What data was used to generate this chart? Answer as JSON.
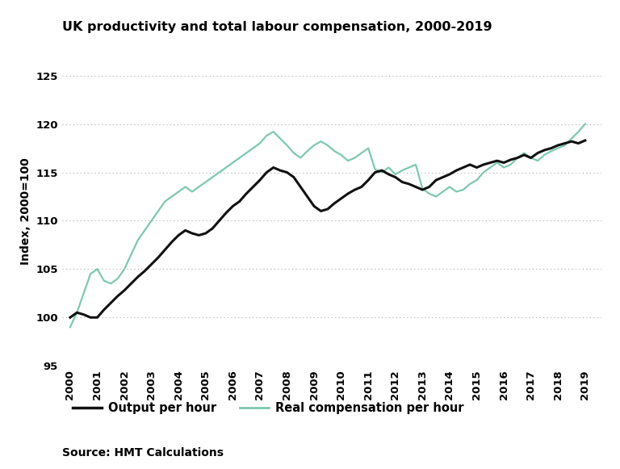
{
  "title": "UK productivity and total labour compensation, 2000-2019",
  "ylabel": "Index, 2000=100",
  "source": "Source: HMT Calculations",
  "ylim": [
    95,
    127
  ],
  "yticks": [
    95,
    100,
    105,
    110,
    115,
    120,
    125
  ],
  "background_color": "#ffffff",
  "output_per_hour_color": "#111111",
  "real_comp_color": "#7dc8b0",
  "output_per_hour_label": "Output per hour",
  "real_comp_label": "Real compensation per hour",
  "output_per_hour_x": [
    2000.0,
    2000.25,
    2000.5,
    2000.75,
    2001.0,
    2001.25,
    2001.5,
    2001.75,
    2002.0,
    2002.25,
    2002.5,
    2002.75,
    2003.0,
    2003.25,
    2003.5,
    2003.75,
    2004.0,
    2004.25,
    2004.5,
    2004.75,
    2005.0,
    2005.25,
    2005.5,
    2005.75,
    2006.0,
    2006.25,
    2006.5,
    2006.75,
    2007.0,
    2007.25,
    2007.5,
    2007.75,
    2008.0,
    2008.25,
    2008.5,
    2008.75,
    2009.0,
    2009.25,
    2009.5,
    2009.75,
    2010.0,
    2010.25,
    2010.5,
    2010.75,
    2011.0,
    2011.25,
    2011.5,
    2011.75,
    2012.0,
    2012.25,
    2012.5,
    2012.75,
    2013.0,
    2013.25,
    2013.5,
    2013.75,
    2014.0,
    2014.25,
    2014.5,
    2014.75,
    2015.0,
    2015.25,
    2015.5,
    2015.75,
    2016.0,
    2016.25,
    2016.5,
    2016.75,
    2017.0,
    2017.25,
    2017.5,
    2017.75,
    2018.0,
    2018.25,
    2018.5,
    2018.75,
    2019.0
  ],
  "output_per_hour_y": [
    100.0,
    100.5,
    100.3,
    100.0,
    100.0,
    100.8,
    101.5,
    102.2,
    102.8,
    103.5,
    104.2,
    104.8,
    105.5,
    106.2,
    107.0,
    107.8,
    108.5,
    109.0,
    108.7,
    108.5,
    108.7,
    109.2,
    110.0,
    110.8,
    111.5,
    112.0,
    112.8,
    113.5,
    114.2,
    115.0,
    115.5,
    115.2,
    115.0,
    114.5,
    113.5,
    112.5,
    111.5,
    111.0,
    111.2,
    111.8,
    112.3,
    112.8,
    113.2,
    113.5,
    114.2,
    115.0,
    115.2,
    114.8,
    114.5,
    114.0,
    113.8,
    113.5,
    113.2,
    113.5,
    114.2,
    114.5,
    114.8,
    115.2,
    115.5,
    115.8,
    115.5,
    115.8,
    116.0,
    116.2,
    116.0,
    116.3,
    116.5,
    116.8,
    116.5,
    117.0,
    117.3,
    117.5,
    117.8,
    118.0,
    118.2,
    118.0,
    118.3
  ],
  "real_comp_x": [
    2000.0,
    2000.25,
    2000.5,
    2000.75,
    2001.0,
    2001.25,
    2001.5,
    2001.75,
    2002.0,
    2002.25,
    2002.5,
    2002.75,
    2003.0,
    2003.25,
    2003.5,
    2003.75,
    2004.0,
    2004.25,
    2004.5,
    2004.75,
    2005.0,
    2005.25,
    2005.5,
    2005.75,
    2006.0,
    2006.25,
    2006.5,
    2006.75,
    2007.0,
    2007.25,
    2007.5,
    2007.75,
    2008.0,
    2008.25,
    2008.5,
    2008.75,
    2009.0,
    2009.25,
    2009.5,
    2009.75,
    2010.0,
    2010.25,
    2010.5,
    2010.75,
    2011.0,
    2011.25,
    2011.5,
    2011.75,
    2012.0,
    2012.25,
    2012.5,
    2012.75,
    2013.0,
    2013.25,
    2013.5,
    2013.75,
    2014.0,
    2014.25,
    2014.5,
    2014.75,
    2015.0,
    2015.25,
    2015.5,
    2015.75,
    2016.0,
    2016.25,
    2016.5,
    2016.75,
    2017.0,
    2017.25,
    2017.5,
    2017.75,
    2018.0,
    2018.25,
    2018.5,
    2018.75,
    2019.0
  ],
  "real_comp_y": [
    99.0,
    100.5,
    102.5,
    104.5,
    105.0,
    103.8,
    103.5,
    104.0,
    105.0,
    106.5,
    108.0,
    109.0,
    110.0,
    111.0,
    112.0,
    112.5,
    113.0,
    113.5,
    113.0,
    113.5,
    114.0,
    114.5,
    115.0,
    115.5,
    116.0,
    116.5,
    117.0,
    117.5,
    118.0,
    118.8,
    119.2,
    118.5,
    117.8,
    117.0,
    116.5,
    117.2,
    117.8,
    118.2,
    117.8,
    117.2,
    116.8,
    116.2,
    116.5,
    117.0,
    117.5,
    115.3,
    115.0,
    115.5,
    114.8,
    115.2,
    115.5,
    115.8,
    113.3,
    112.8,
    112.5,
    113.0,
    113.5,
    113.0,
    113.2,
    113.8,
    114.2,
    115.0,
    115.5,
    116.0,
    115.5,
    115.8,
    116.5,
    117.0,
    116.5,
    116.2,
    116.8,
    117.2,
    117.5,
    117.8,
    118.5,
    119.2,
    120.0
  ]
}
